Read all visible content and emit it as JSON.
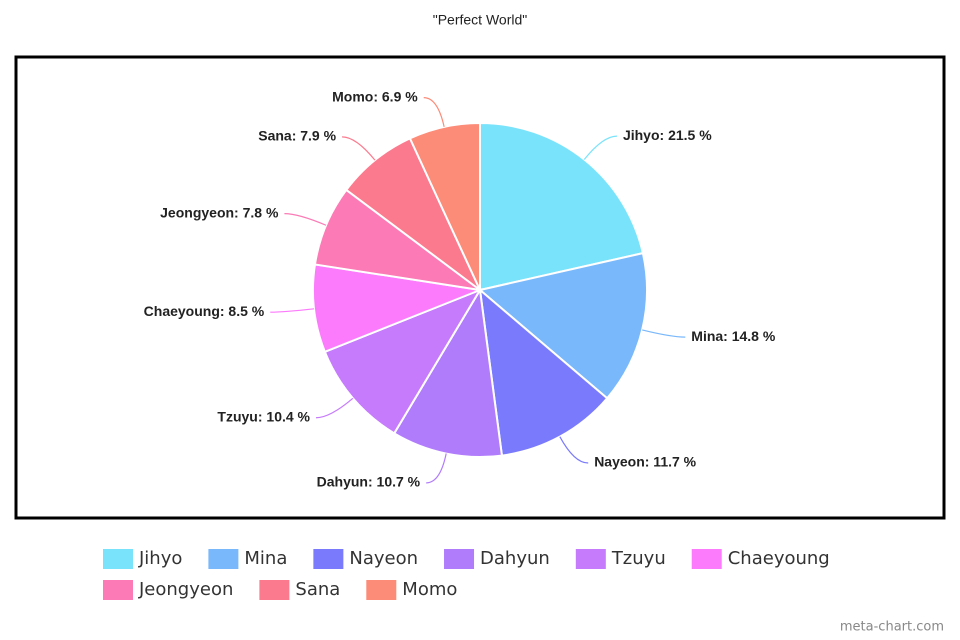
{
  "chart_data": {
    "type": "pie",
    "title": "\"Perfect World\"",
    "categories": [
      "Jihyo",
      "Mina",
      "Nayeon",
      "Dahyun",
      "Tzuyu",
      "Chaeyoung",
      "Jeongyeon",
      "Sana",
      "Momo"
    ],
    "values": [
      21.5,
      14.8,
      11.7,
      10.7,
      10.4,
      8.5,
      7.8,
      7.9,
      6.9
    ],
    "value_labels": [
      "Jihyo: 21.5 %",
      "Mina: 14.8 %",
      "Nayeon: 11.7 %",
      "Dahyun: 10.7 %",
      "Tzuyu: 10.4 %",
      "Chaeyoung: 8.5 %",
      "Jeongyeon: 7.8 %",
      "Sana: 7.9 %",
      "Momo: 6.9 %"
    ],
    "colors": [
      "#7ae3fc",
      "#7ab8fc",
      "#7a7afc",
      "#b17cfc",
      "#c67afc",
      "#fc7afc",
      "#fc7ab5",
      "#fc7a8e",
      "#fc8c78"
    ],
    "legend": "bottom",
    "watermark": "meta-chart.com"
  }
}
